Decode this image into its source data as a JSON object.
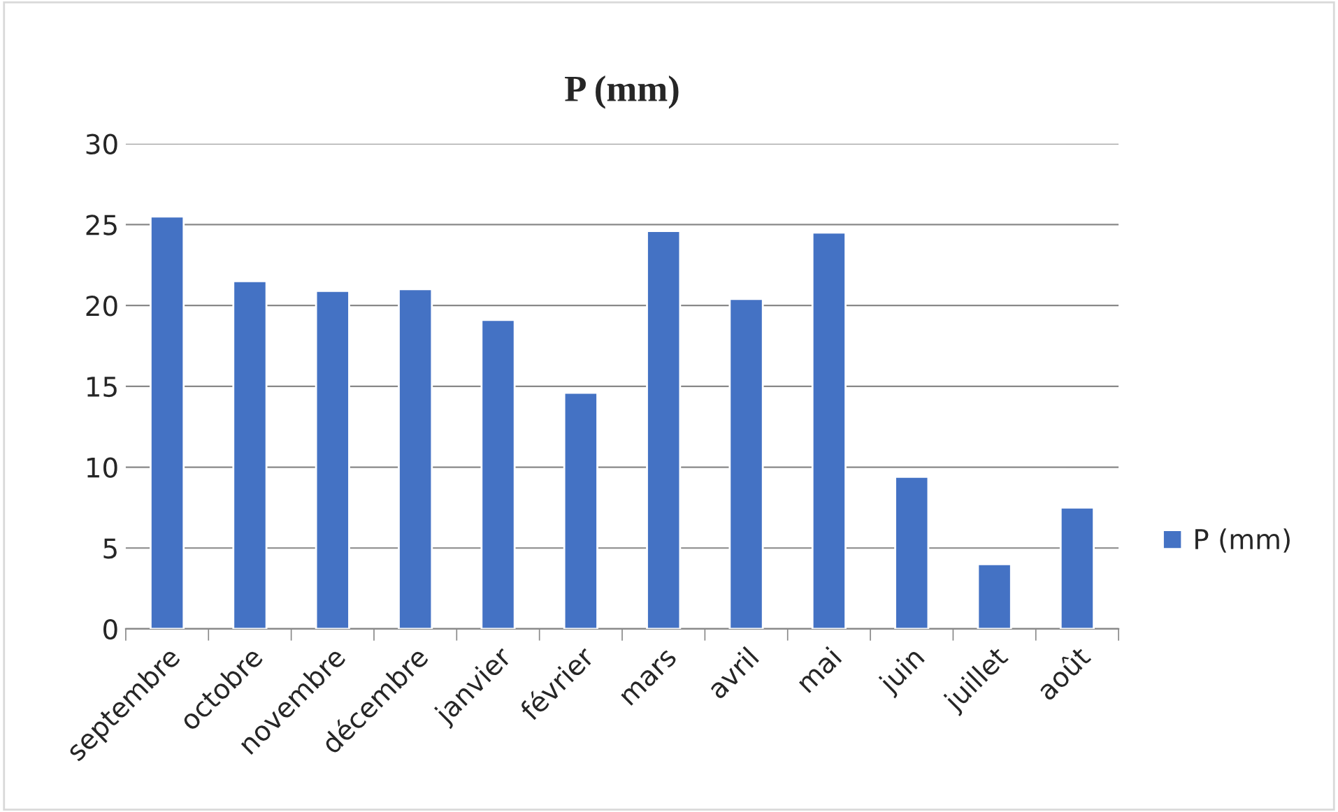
{
  "chart_data": {
    "type": "bar",
    "title": "P (mm)",
    "categories": [
      "septembre",
      "octobre",
      "novembre",
      "décembre",
      "janvier",
      "février",
      "mars",
      "avril",
      "mai",
      "juin",
      "juillet",
      "août"
    ],
    "series": [
      {
        "name": "P (mm)",
        "color": "#4472c4",
        "values": [
          25.5,
          21.5,
          20.9,
          21.0,
          19.1,
          14.6,
          24.6,
          20.4,
          24.5,
          9.4,
          4.0,
          7.5
        ]
      }
    ],
    "ylim": [
      0,
      30
    ],
    "yticks": [
      0,
      5,
      10,
      15,
      20,
      25,
      30
    ],
    "grid": "y",
    "legend": "right"
  }
}
